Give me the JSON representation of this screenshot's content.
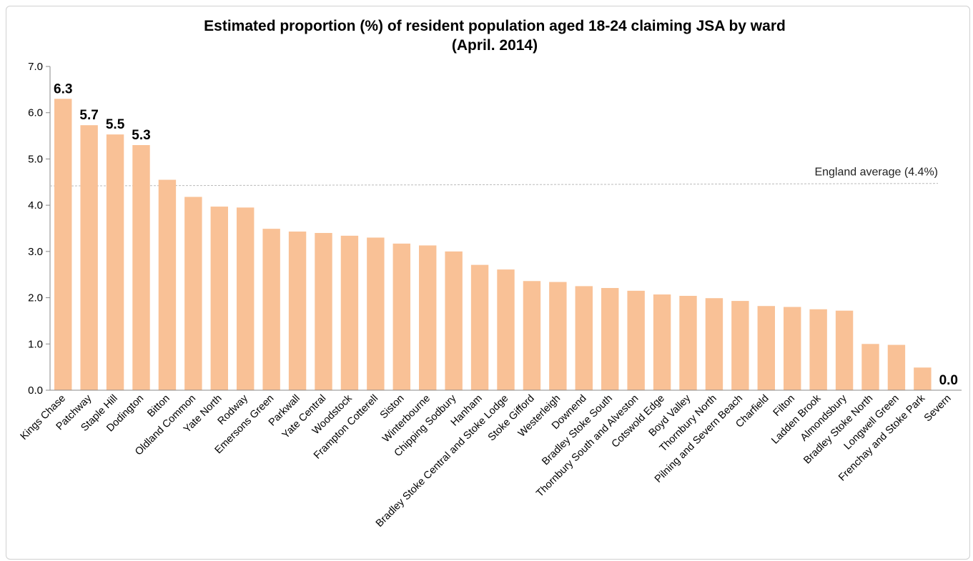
{
  "chart_data": {
    "type": "bar",
    "title_line1": "Estimated proportion (%) of resident population aged 18-24 claiming JSA by ward",
    "title_line2": "(April. 2014)",
    "xlabel": "",
    "ylabel": "",
    "ylim": [
      0,
      7
    ],
    "yticks": [
      "0.0",
      "1.0",
      "2.0",
      "3.0",
      "4.0",
      "5.0",
      "6.0",
      "7.0"
    ],
    "grid": false,
    "legend": "none",
    "bar_color": "#f9c196",
    "reference_line": {
      "value": 4.44,
      "label": "England average (4.4%)",
      "color": "#bbbbbb"
    },
    "categories": [
      "Kings Chase",
      "Patchway",
      "Staple Hill",
      "Dodington",
      "Bitton",
      "Oldland Common",
      "Yate North",
      "Rodway",
      "Emersons Green",
      "Parkwall",
      "Yate Central",
      "Woodstock",
      "Frampton Cotterell",
      "Siston",
      "Winterbourne",
      "Chipping Sodbury",
      "Hanham",
      "Bradley Stoke Central and Stoke Lodge",
      "Stoke Gifford",
      "Westerleigh",
      "Downend",
      "Bradley Stoke South",
      "Thornbury South and Alveston",
      "Cotswold Edge",
      "Boyd Valley",
      "Thornbury North",
      "Pilning and Severn Beach",
      "Charfield",
      "Filton",
      "Ladden Brook",
      "Almondsbury",
      "Bradley Stoke North",
      "Longwell Green",
      "Frenchay and Stoke Park",
      "Severn"
    ],
    "values": [
      6.3,
      5.73,
      5.53,
      5.3,
      4.55,
      4.18,
      3.97,
      3.95,
      3.49,
      3.43,
      3.4,
      3.34,
      3.3,
      3.17,
      3.13,
      3.0,
      2.71,
      2.61,
      2.36,
      2.34,
      2.25,
      2.21,
      2.15,
      2.07,
      2.04,
      1.99,
      1.93,
      1.82,
      1.8,
      1.75,
      1.72,
      1.0,
      0.98,
      0.49,
      0.0
    ],
    "data_labels": [
      {
        "index": 0,
        "text": "6.3"
      },
      {
        "index": 1,
        "text": "5.7"
      },
      {
        "index": 2,
        "text": "5.5"
      },
      {
        "index": 3,
        "text": "5.3"
      },
      {
        "index": 34,
        "text": "0.0"
      }
    ]
  }
}
